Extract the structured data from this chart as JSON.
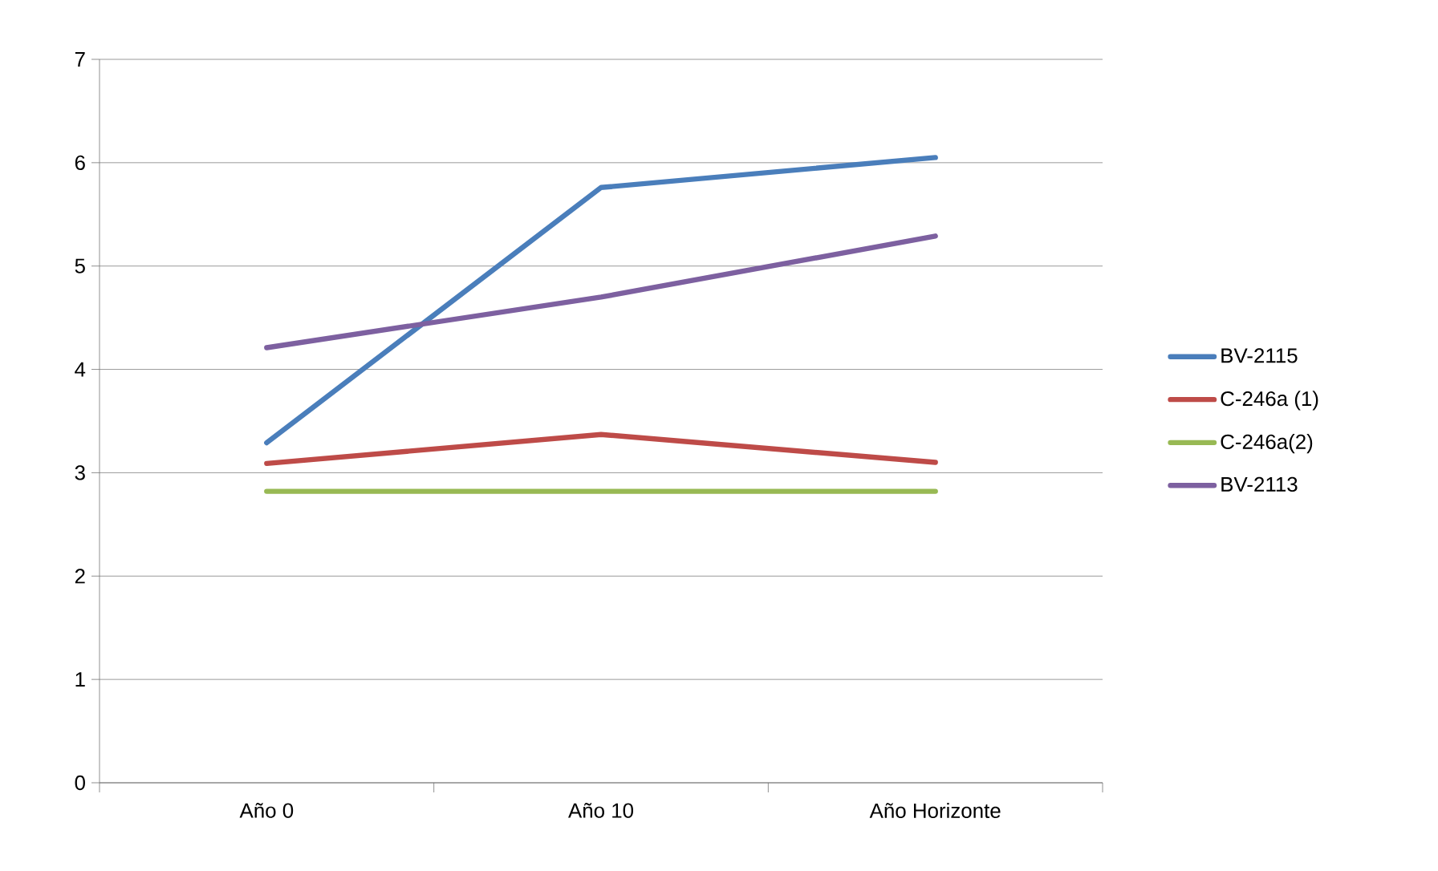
{
  "chart_data": {
    "type": "line",
    "categories": [
      "Año 0",
      "Año 10",
      "Año Horizonte"
    ],
    "series": [
      {
        "name": "BV-2115",
        "color": "#4a7ebb",
        "values": [
          3.29,
          5.76,
          6.05
        ]
      },
      {
        "name": "C-246a (1)",
        "color": "#be4b48",
        "values": [
          3.09,
          3.37,
          3.1
        ]
      },
      {
        "name": "C-246a(2)",
        "color": "#98b954",
        "values": [
          2.82,
          2.82,
          2.82
        ]
      },
      {
        "name": "BV-2113",
        "color": "#7d60a0",
        "values": [
          4.21,
          4.7,
          5.29
        ]
      }
    ],
    "ylim": [
      0,
      7
    ],
    "yticks": [
      0,
      1,
      2,
      3,
      4,
      5,
      6,
      7
    ],
    "grid": "y",
    "legend": "right",
    "marker": "none",
    "line_style": "solid"
  }
}
